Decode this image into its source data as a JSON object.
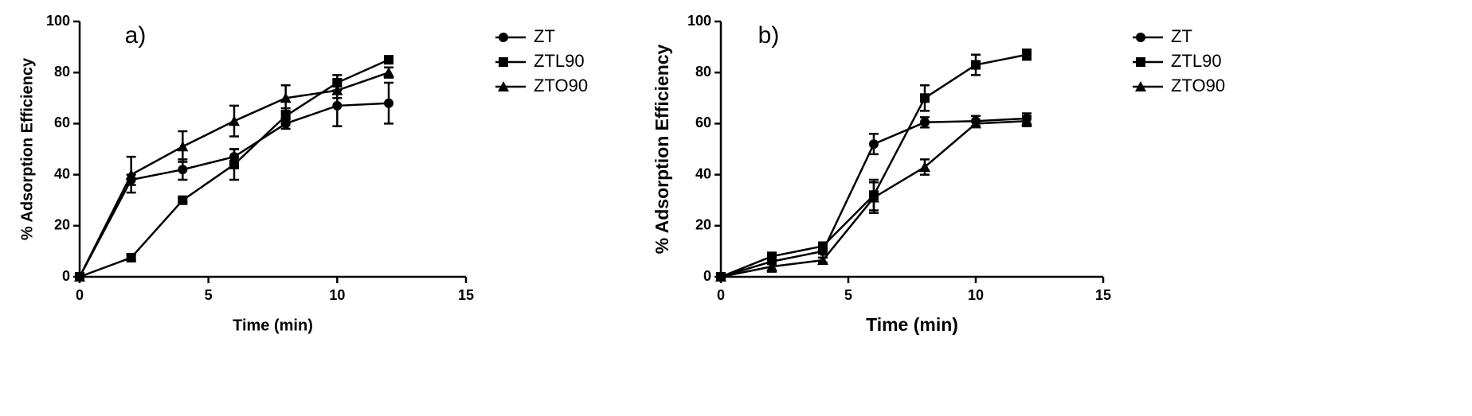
{
  "chart_data": [
    {
      "type": "line",
      "label": "a)",
      "xlabel": "Time (min)",
      "ylabel": "% Adsorption Efficiency",
      "x": [
        0,
        2,
        4,
        6,
        8,
        10,
        12
      ],
      "xlim": [
        0,
        15
      ],
      "xticks": [
        0,
        5,
        10,
        15
      ],
      "ylim": [
        0,
        100
      ],
      "yticks": [
        0,
        20,
        40,
        60,
        80,
        100
      ],
      "series": [
        {
          "name": "ZT",
          "color": "#000000",
          "marker": "circle",
          "values": [
            0,
            38,
            42,
            47,
            60,
            67,
            68
          ],
          "errors": [
            0,
            2,
            4,
            3,
            2,
            8,
            8
          ]
        },
        {
          "name": "ZTL90",
          "color": "#000000",
          "marker": "square",
          "values": [
            0,
            7.5,
            30,
            44,
            63,
            76,
            85
          ],
          "errors": [
            0,
            1,
            1,
            6,
            3,
            3,
            1
          ]
        },
        {
          "name": "ZTO90",
          "color": "#000000",
          "marker": "triangle",
          "values": [
            0,
            40,
            51,
            61,
            70,
            73,
            80
          ],
          "errors": [
            0,
            7,
            6,
            6,
            5,
            3,
            2
          ]
        }
      ]
    },
    {
      "type": "line",
      "label": "b)",
      "xlabel": "Time (min)",
      "ylabel": "% Adsorption Efficiency",
      "x": [
        0,
        2,
        4,
        6,
        8,
        10,
        12
      ],
      "xlim": [
        0,
        15
      ],
      "xticks": [
        0,
        5,
        10,
        15
      ],
      "ylim": [
        0,
        100
      ],
      "yticks": [
        0,
        20,
        40,
        60,
        80,
        100
      ],
      "series": [
        {
          "name": "ZT",
          "color": "#000000",
          "marker": "circle",
          "values": [
            0,
            6,
            10,
            52,
            60.5,
            61,
            62
          ],
          "errors": [
            0,
            1,
            1,
            4,
            2,
            2,
            2
          ]
        },
        {
          "name": "ZTL90",
          "color": "#000000",
          "marker": "square",
          "values": [
            0,
            8,
            12,
            32,
            70,
            83,
            87
          ],
          "errors": [
            0,
            1,
            1,
            6,
            5,
            4,
            2
          ]
        },
        {
          "name": "ZTO90",
          "color": "#000000",
          "marker": "triangle",
          "values": [
            0,
            4,
            6.5,
            31,
            43,
            60,
            61
          ],
          "errors": [
            0,
            2,
            1,
            6,
            3,
            1,
            2
          ]
        }
      ]
    }
  ]
}
